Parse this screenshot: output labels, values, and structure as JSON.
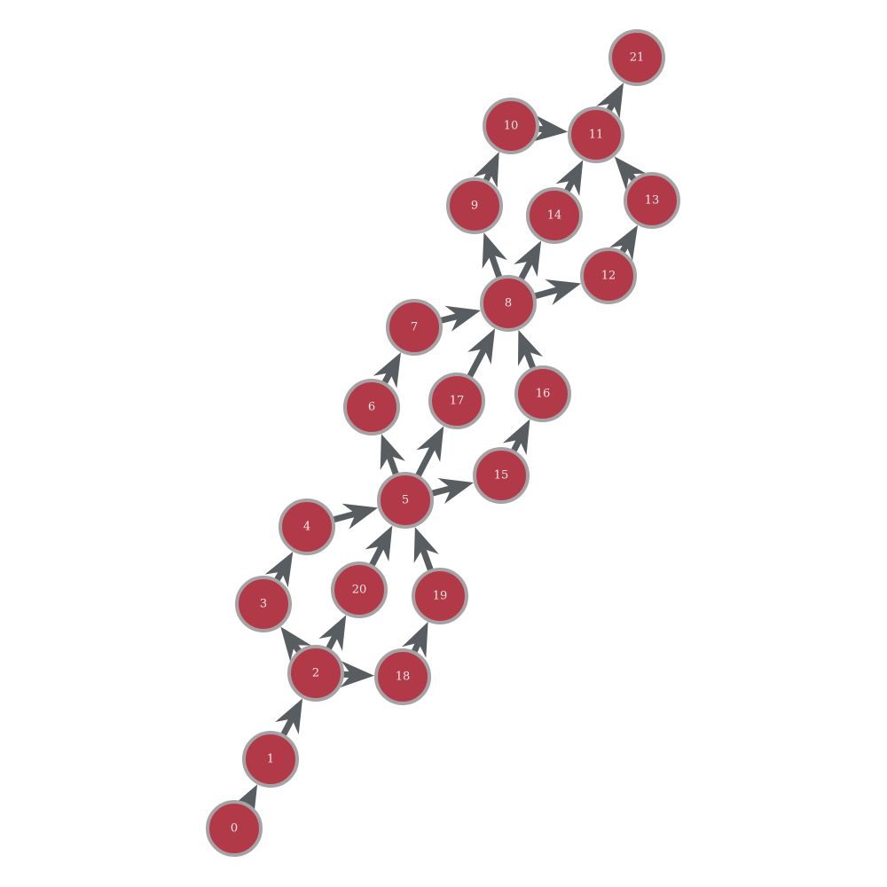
{
  "diagram": {
    "type": "directed-graph",
    "colors": {
      "node_fill": "#b23a48",
      "node_stroke": "#a6a2a4",
      "label": "#f2e8ea",
      "edge": "#575d61"
    },
    "nodes": [
      {
        "id": "n0",
        "label": "0"
      },
      {
        "id": "n1",
        "label": "1"
      },
      {
        "id": "n2",
        "label": "2"
      },
      {
        "id": "n3",
        "label": "3"
      },
      {
        "id": "n4",
        "label": "4"
      },
      {
        "id": "n5",
        "label": "5"
      },
      {
        "id": "n6",
        "label": "6"
      },
      {
        "id": "n7",
        "label": "7"
      },
      {
        "id": "n8",
        "label": "8"
      },
      {
        "id": "n9",
        "label": "9"
      },
      {
        "id": "n10",
        "label": "10"
      },
      {
        "id": "n11",
        "label": "11"
      },
      {
        "id": "n12",
        "label": "12"
      },
      {
        "id": "n13",
        "label": "13"
      },
      {
        "id": "n14",
        "label": "14"
      },
      {
        "id": "n15",
        "label": "15"
      },
      {
        "id": "n16",
        "label": "16"
      },
      {
        "id": "n17",
        "label": "17"
      },
      {
        "id": "n18",
        "label": "18"
      },
      {
        "id": "n19",
        "label": "19"
      },
      {
        "id": "n20",
        "label": "20"
      },
      {
        "id": "n21",
        "label": "21"
      }
    ],
    "edges": [
      {
        "from": "n0",
        "to": "n1"
      },
      {
        "from": "n1",
        "to": "n2"
      },
      {
        "from": "n2",
        "to": "n3"
      },
      {
        "from": "n2",
        "to": "n20"
      },
      {
        "from": "n2",
        "to": "n18"
      },
      {
        "from": "n3",
        "to": "n4"
      },
      {
        "from": "n4",
        "to": "n5"
      },
      {
        "from": "n20",
        "to": "n5"
      },
      {
        "from": "n18",
        "to": "n19"
      },
      {
        "from": "n19",
        "to": "n5"
      },
      {
        "from": "n5",
        "to": "n6"
      },
      {
        "from": "n5",
        "to": "n17"
      },
      {
        "from": "n5",
        "to": "n15"
      },
      {
        "from": "n6",
        "to": "n7"
      },
      {
        "from": "n7",
        "to": "n8"
      },
      {
        "from": "n17",
        "to": "n8"
      },
      {
        "from": "n15",
        "to": "n16"
      },
      {
        "from": "n16",
        "to": "n8"
      },
      {
        "from": "n8",
        "to": "n9"
      },
      {
        "from": "n8",
        "to": "n14"
      },
      {
        "from": "n8",
        "to": "n12"
      },
      {
        "from": "n9",
        "to": "n10"
      },
      {
        "from": "n10",
        "to": "n11"
      },
      {
        "from": "n14",
        "to": "n11"
      },
      {
        "from": "n12",
        "to": "n13"
      },
      {
        "from": "n13",
        "to": "n11"
      },
      {
        "from": "n11",
        "to": "n21"
      }
    ]
  }
}
